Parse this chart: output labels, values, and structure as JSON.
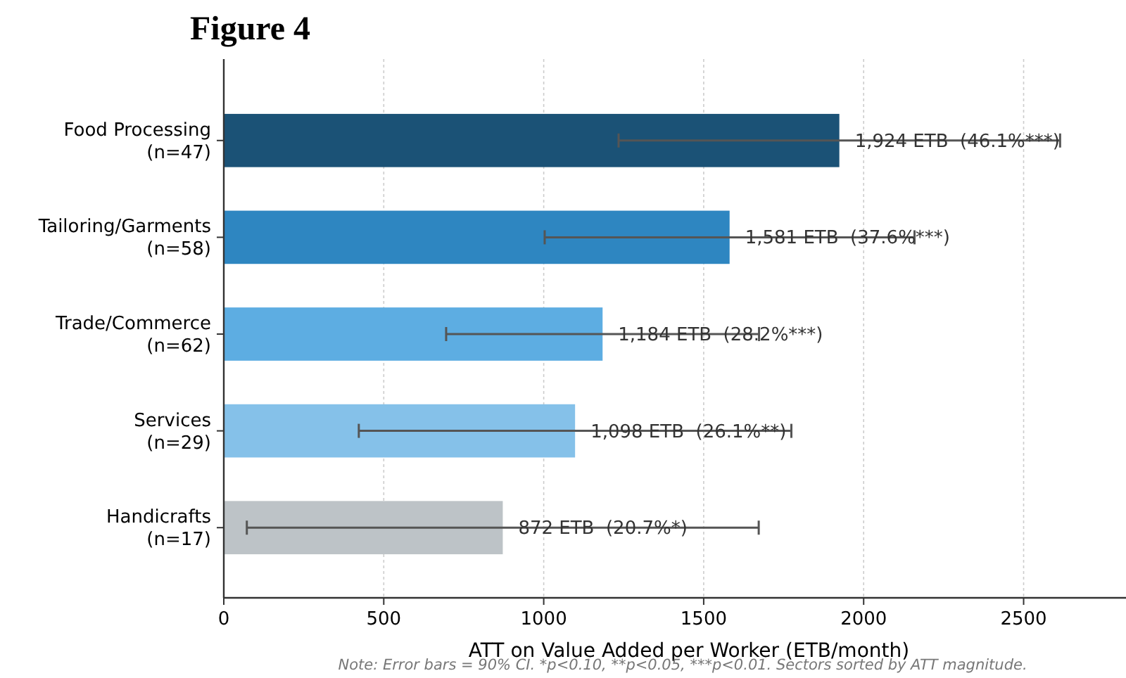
{
  "chart_data": {
    "type": "bar",
    "orientation": "horizontal",
    "title": "Figure 4",
    "xlabel": "ATT on Value Added per Worker (ETB/month)",
    "categories": [
      "Food Processing\n(n=47)",
      "Tailoring/Garments\n(n=58)",
      "Trade/Commerce\n(n=62)",
      "Services\n(n=29)",
      "Handicrafts\n(n=17)"
    ],
    "values": [
      1924,
      1581,
      1184,
      1098,
      872
    ],
    "colors": [
      "#1b5276",
      "#2e86c1",
      "#5dade2",
      "#85c1e9",
      "#bdc3c7"
    ],
    "errors": [
      690,
      578,
      489,
      676,
      800
    ],
    "value_labels": [
      "1,924 ETB  (46.1%***)",
      "1,581 ETB  (37.6%***)",
      "1,184 ETB  (28.2%***)",
      "1,098 ETB  (26.1%**)",
      "872 ETB  (20.7%*)"
    ],
    "xlim": [
      0,
      2820
    ],
    "xticks": [
      0,
      500,
      1000,
      1500,
      2000,
      2500
    ],
    "grid": "x",
    "annotations": [
      "Note: Error bars = 90% CI. *p<0.10, **p<0.05, ***p<0.01. Sectors sorted by ATT magnitude."
    ]
  }
}
